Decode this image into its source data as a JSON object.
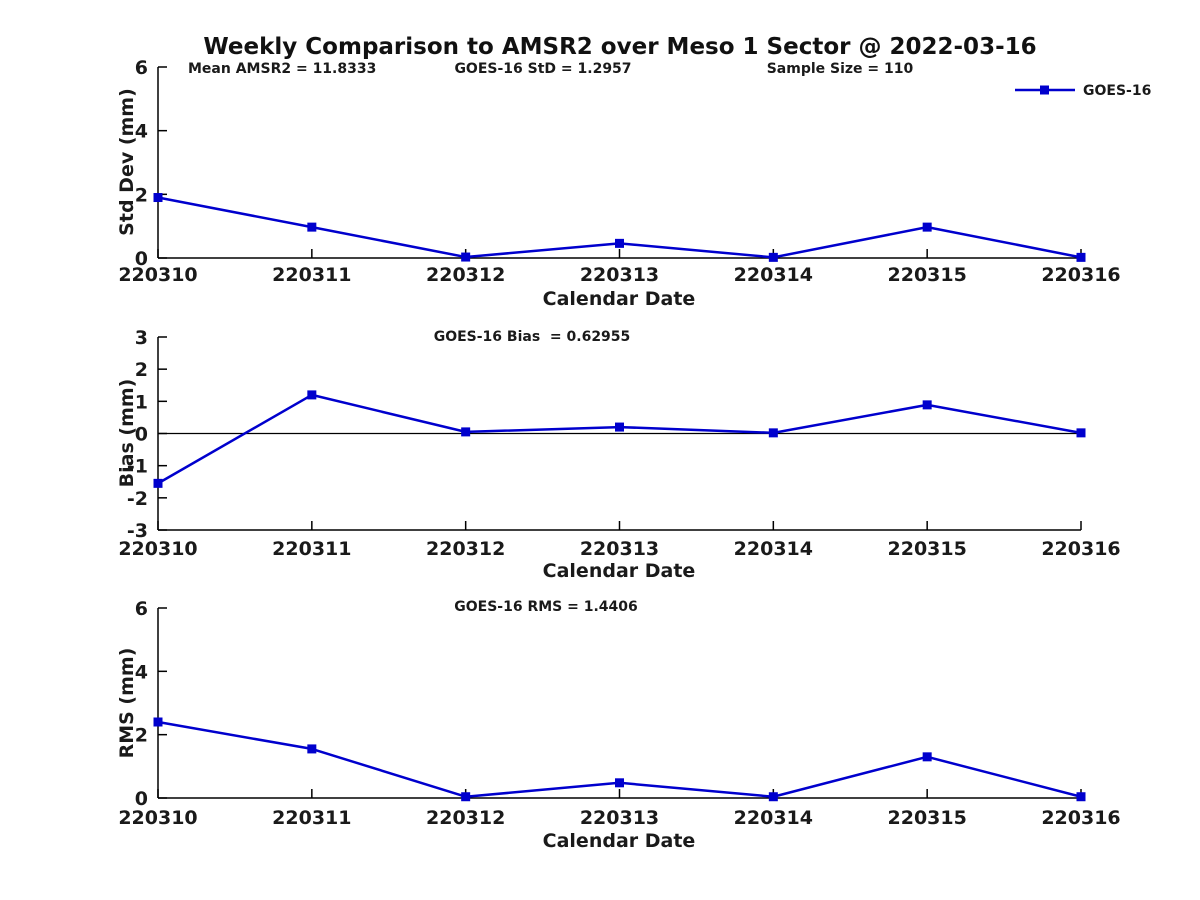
{
  "title": "Weekly Comparison to AMSR2 over Meso 1 Sector @ 2022-03-16",
  "legend": {
    "label": "GOES-16",
    "marker": "square"
  },
  "colors": {
    "series": "#0000CD",
    "axis": "#000000",
    "text": "#1a1a1a",
    "background": "#ffffff"
  },
  "chart_data": [
    {
      "type": "line",
      "panel": "std_dev",
      "categories": [
        "220310",
        "220311",
        "220312",
        "220313",
        "220314",
        "220315",
        "220316"
      ],
      "series": [
        {
          "name": "GOES-16",
          "values": [
            1.9,
            0.97,
            0.03,
            0.46,
            0.02,
            0.97,
            0.02
          ]
        }
      ],
      "xlabel": "Calendar Date",
      "ylabel": "Std Dev (mm)",
      "ylim": [
        0,
        6
      ],
      "yticks": [
        0,
        2,
        4,
        6
      ],
      "zero_line": false,
      "grid": false,
      "legend_position": "top-right",
      "annotations": [
        "Mean AMSR2 = 11.8333",
        "GOES-16 StD = 1.2957",
        "Sample Size = 110"
      ]
    },
    {
      "type": "line",
      "panel": "bias",
      "categories": [
        "220310",
        "220311",
        "220312",
        "220313",
        "220314",
        "220315",
        "220316"
      ],
      "series": [
        {
          "name": "GOES-16",
          "values": [
            -1.55,
            1.2,
            0.05,
            0.2,
            0.02,
            0.89,
            0.02
          ]
        }
      ],
      "xlabel": "Calendar Date",
      "ylabel": "Bias (mm)",
      "ylim": [
        -3,
        3
      ],
      "yticks": [
        -3,
        -2,
        -1,
        0,
        1,
        2,
        3
      ],
      "zero_line": true,
      "grid": false,
      "annotations": [
        "GOES-16 Bias  = 0.62955"
      ]
    },
    {
      "type": "line",
      "panel": "rms",
      "categories": [
        "220310",
        "220311",
        "220312",
        "220313",
        "220314",
        "220315",
        "220316"
      ],
      "series": [
        {
          "name": "GOES-16",
          "values": [
            2.4,
            1.55,
            0.04,
            0.48,
            0.04,
            1.3,
            0.04
          ]
        }
      ],
      "xlabel": "Calendar Date",
      "ylabel": "RMS (mm)",
      "ylim": [
        0,
        6
      ],
      "yticks": [
        0,
        2,
        4,
        6
      ],
      "zero_line": false,
      "grid": false,
      "annotations": [
        "GOES-16 RMS = 1.4406"
      ]
    }
  ]
}
